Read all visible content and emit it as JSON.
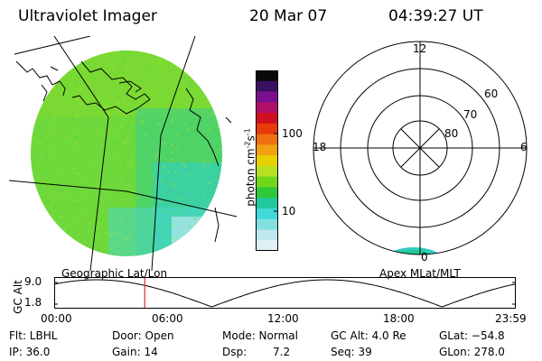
{
  "header": {
    "instrument": "Ultraviolet Imager",
    "date": "20 Mar 07",
    "time": "04:39:27 UT"
  },
  "left_panel": {
    "projection_label": "Geographic Lat/Lon"
  },
  "colorbar": {
    "tick_100": "100",
    "tick_10": "10",
    "units_main": "photon cm",
    "units_exp1": "-2",
    "units_s": "s",
    "units_exp2": "-1",
    "colors": [
      "#0a0a0a",
      "#3a1060",
      "#7a1090",
      "#b0106a",
      "#d01020",
      "#e83a0a",
      "#f07010",
      "#f0a010",
      "#e8d000",
      "#b8e020",
      "#70d818",
      "#30c838",
      "#20c8a0",
      "#40d8d8",
      "#80e0e0",
      "#bfe8ee",
      "#e0f0f4"
    ]
  },
  "polar": {
    "mlt_12": "12",
    "mlt_18": "18",
    "mlt_6": "6",
    "mlt_0": "0",
    "lat_60": "60",
    "lat_70": "70",
    "lat_80": "80",
    "projection_label": "Apex MLat/MLT"
  },
  "orbit": {
    "axis_label": "GC Alt",
    "y_max": "9.0",
    "y_min": "1.8",
    "x_ticks": [
      "00:00",
      "06:00",
      "12:00",
      "18:00",
      "23:59"
    ],
    "current_time_fraction": 0.1945
  },
  "status": {
    "flt": "Flt: LBHL",
    "ip": "IP: 36.0",
    "door": "Door: Open",
    "gain": "Gain: 14",
    "mode": "Mode: Normal",
    "dsp_label": "Dsp:",
    "dsp_value": "7.2",
    "gc_alt": "GC Alt: 4.0 Re",
    "seq": "Seq: 39",
    "glat": "GLat: −54.8",
    "glon": "GLon: 278.0"
  }
}
